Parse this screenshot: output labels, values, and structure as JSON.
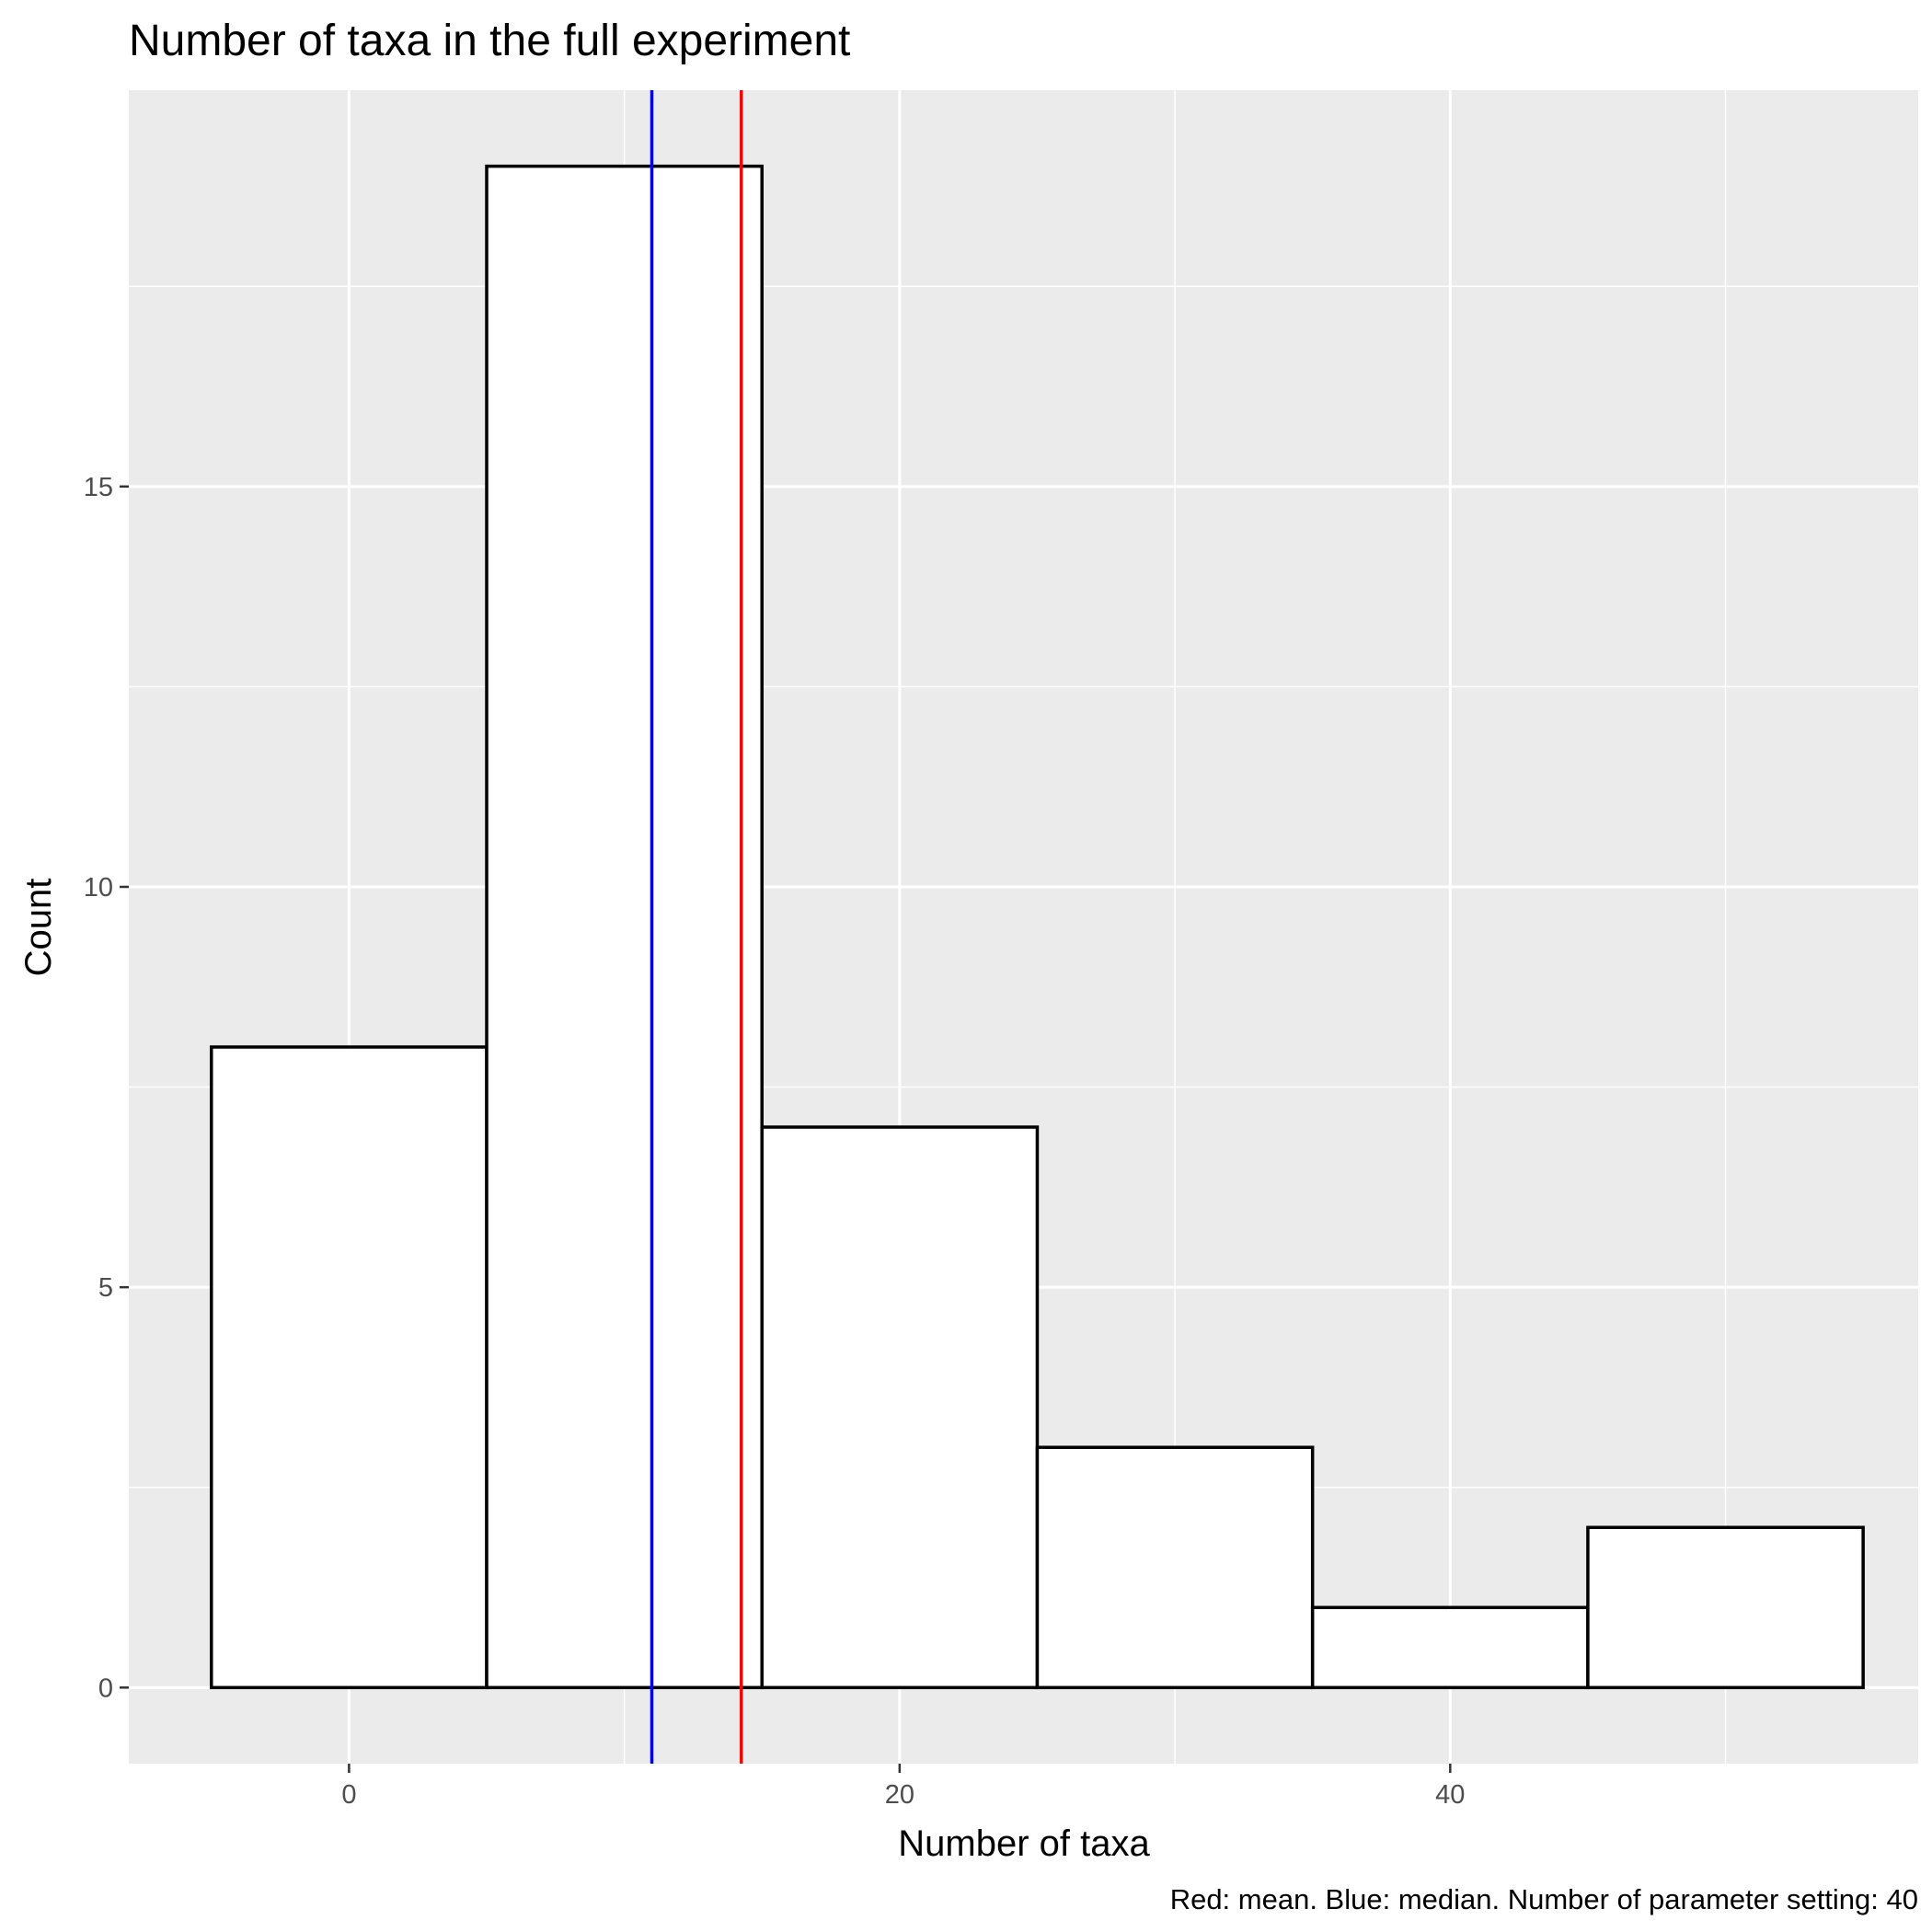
{
  "chart_data": {
    "type": "bar",
    "title": "Number of taxa in the full experiment",
    "xlabel": "Number of taxa",
    "ylabel": "Count",
    "caption": "Red: mean. Blue: median. Number of parameter setting: 40",
    "bins": [
      {
        "x_start": -5,
        "x_end": 5,
        "count": 8
      },
      {
        "x_start": 5,
        "x_end": 15,
        "count": 19
      },
      {
        "x_start": 15,
        "x_end": 25,
        "count": 7
      },
      {
        "x_start": 25,
        "x_end": 35,
        "count": 3
      },
      {
        "x_start": 35,
        "x_end": 45,
        "count": 1
      },
      {
        "x_start": 45,
        "x_end": 55,
        "count": 2
      }
    ],
    "reference_lines": [
      {
        "label": "median",
        "value": 11,
        "color": "#0000FF"
      },
      {
        "label": "mean",
        "value": 14.25,
        "color": "#FF0000"
      }
    ],
    "x_ticks": [
      0,
      20,
      40
    ],
    "y_ticks": [
      0,
      5,
      10,
      15
    ],
    "xlim": [
      -8,
      57
    ],
    "ylim": [
      -0.95,
      19.95
    ],
    "grid": true,
    "colors": {
      "panel_background": "#EBEBEB",
      "grid": "#FFFFFF",
      "bar_fill": "#FFFFFF",
      "bar_outline": "#000000",
      "tick_label": "#4D4D4D"
    }
  }
}
